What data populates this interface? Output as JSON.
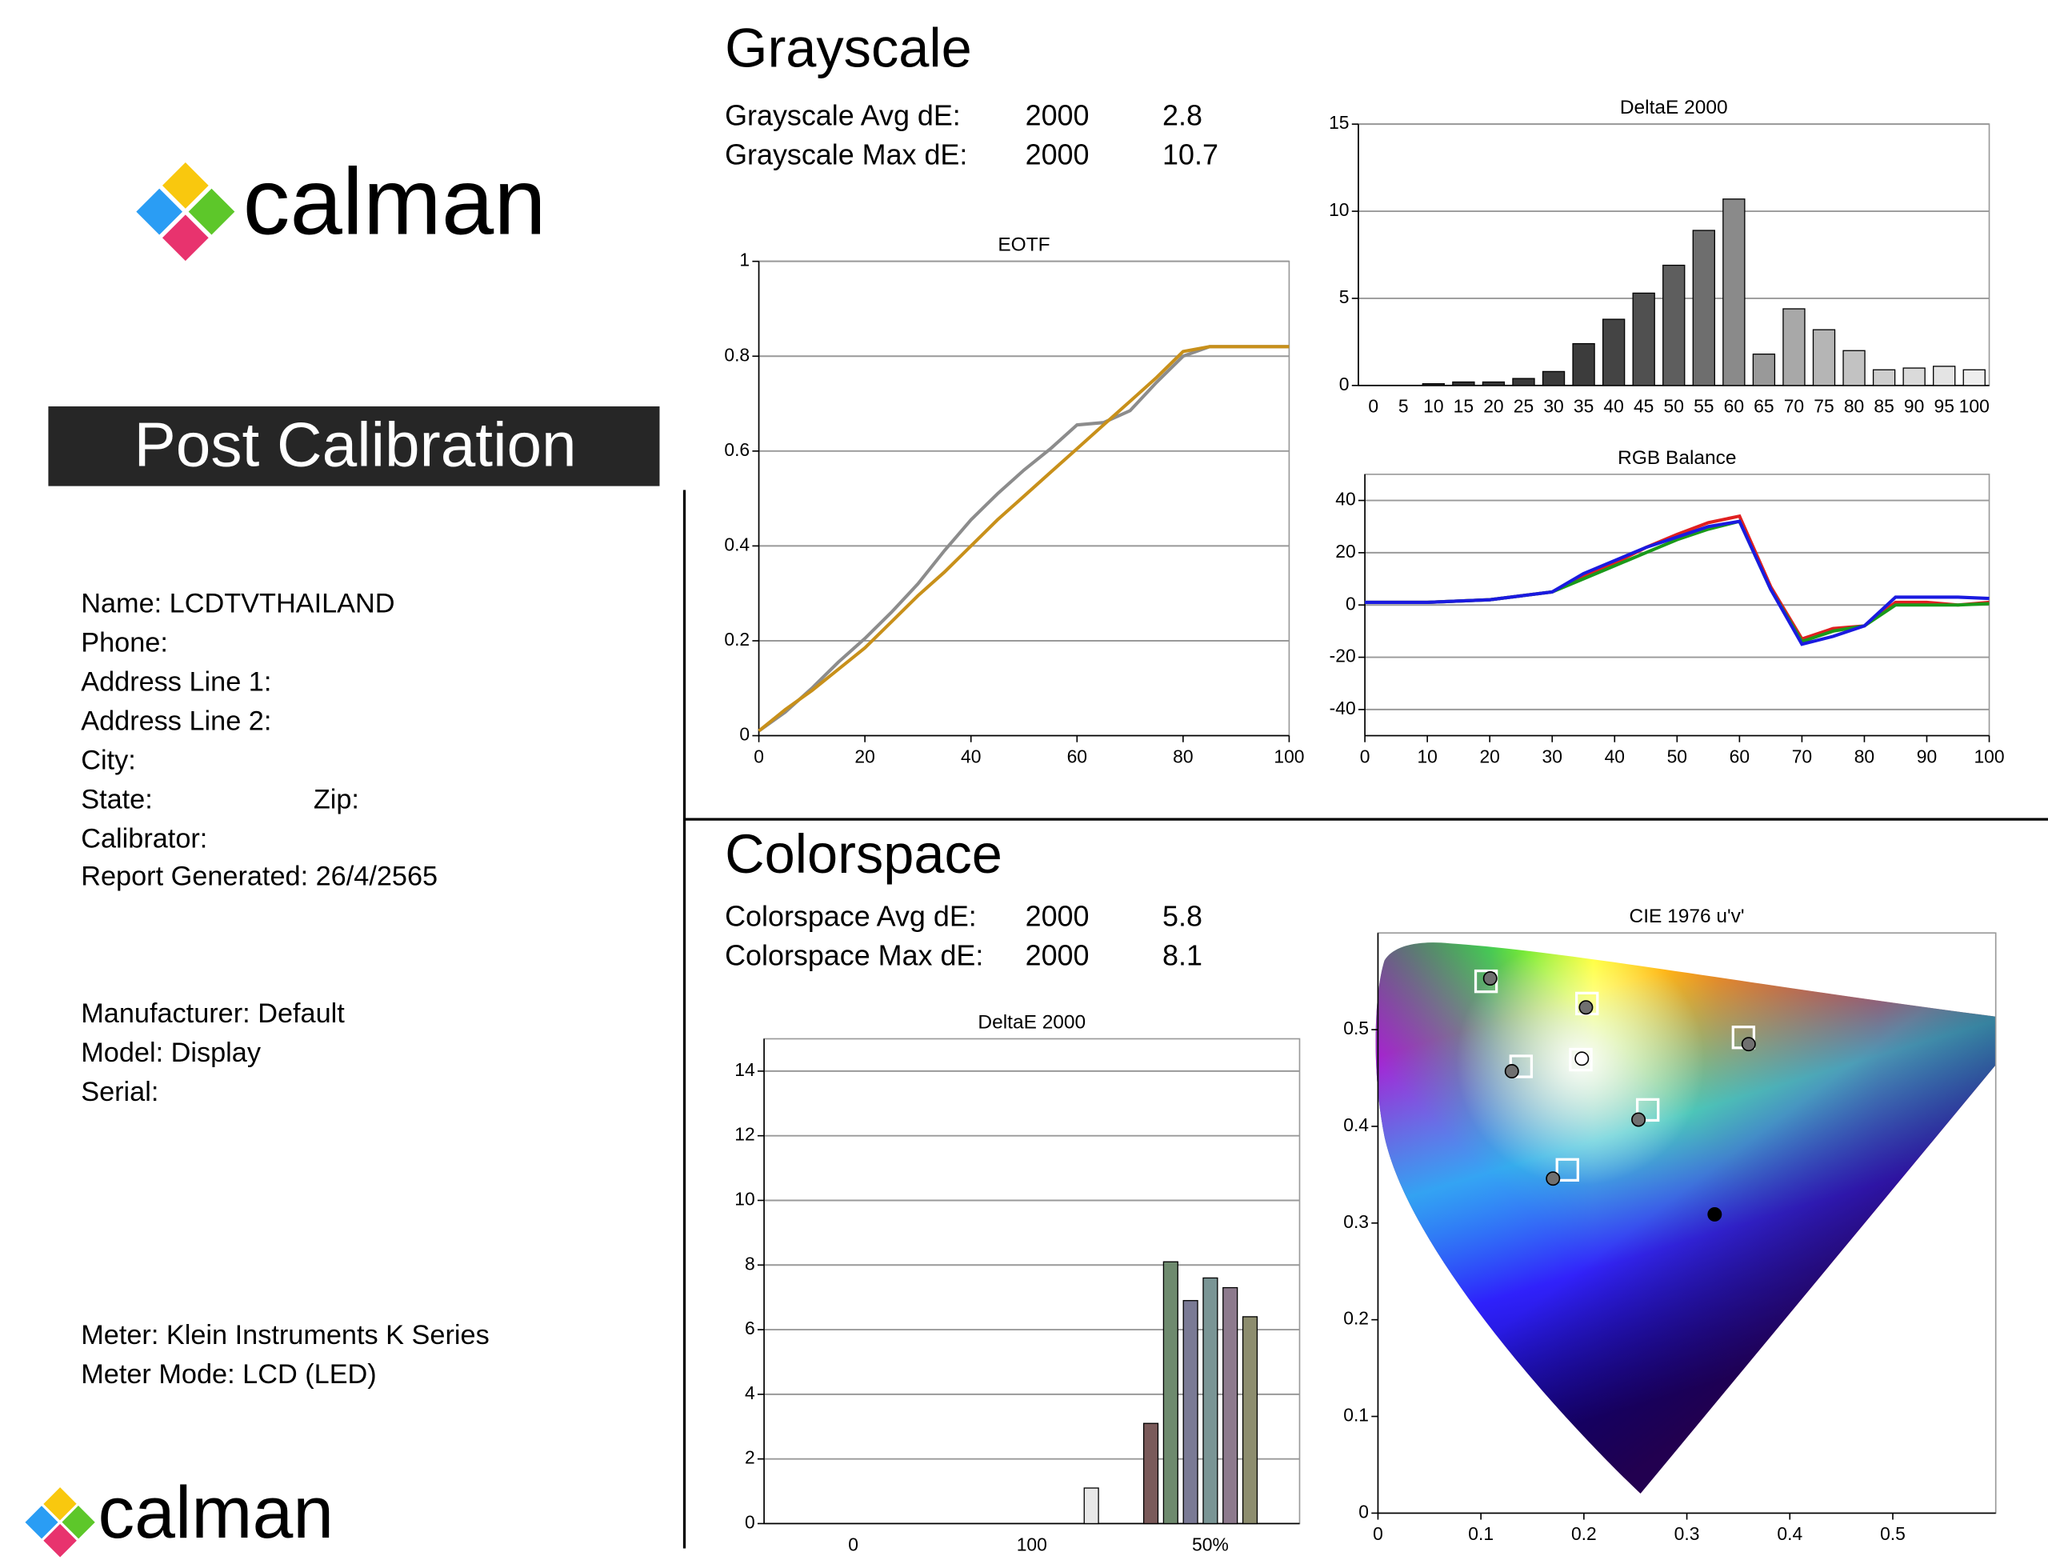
{
  "header": {
    "logo": "calman",
    "badge": "Post Calibration",
    "footer_logo": "calman"
  },
  "info": {
    "lines": [
      "Name: LCDTVTHAILAND",
      "Phone:",
      "Address Line 1:",
      "Address Line 2:",
      "City:",
      "State:",
      "Calibrator:",
      "Report Generated: 26/4/2565",
      "Manufacturer: Default",
      "Model: Display",
      "Serial:",
      "Meter: Klein Instruments K Series",
      "Meter Mode: LCD (LED)"
    ],
    "zip": "Zip:"
  },
  "grayscale": {
    "title": "Grayscale",
    "rows": [
      [
        "Grayscale Avg dE:",
        "2000",
        2.8
      ],
      [
        "Grayscale Max dE:",
        "2000",
        10.7
      ]
    ]
  },
  "colorspace": {
    "title": "Colorspace",
    "rows": [
      [
        "Colorspace Avg dE:",
        "2000",
        5.8
      ],
      [
        "Colorspace Max dE:",
        "2000",
        8.1
      ]
    ]
  },
  "chart_data": [
    {
      "type": "line",
      "title": "EOTF",
      "x": [
        0,
        5,
        10,
        15,
        20,
        25,
        30,
        35,
        40,
        45,
        50,
        55,
        60,
        65,
        70,
        75,
        80,
        85,
        90,
        95,
        100
      ],
      "series": [
        {
          "color": "#8c8c8c",
          "values": [
            0.01,
            0.05,
            0.1,
            0.155,
            0.205,
            0.26,
            0.32,
            0.39,
            0.455,
            0.51,
            0.56,
            0.605,
            0.655,
            0.66,
            0.685,
            0.745,
            0.8,
            0.82,
            0.82,
            0.82,
            0.82
          ]
        },
        {
          "color": "#c8901a",
          "values": [
            0.01,
            0.055,
            0.095,
            0.14,
            0.185,
            0.24,
            0.295,
            0.345,
            0.4,
            0.455,
            0.505,
            0.555,
            0.605,
            0.655,
            0.705,
            0.755,
            0.81,
            0.82,
            0.82,
            0.82,
            0.82
          ]
        }
      ],
      "xlim": [
        0,
        100
      ],
      "ylim": [
        0,
        1
      ],
      "xticks": [
        0,
        20,
        40,
        60,
        80,
        100
      ],
      "yticks": [
        0,
        0.2,
        0.4,
        0.6,
        0.8,
        1
      ],
      "grid": true
    },
    {
      "type": "bar",
      "title": "DeltaE 2000",
      "categories": [
        0,
        5,
        10,
        15,
        20,
        25,
        30,
        35,
        40,
        45,
        50,
        55,
        60,
        65,
        70,
        75,
        80,
        85,
        90,
        95,
        100
      ],
      "values": [
        0,
        0,
        0.1,
        0.2,
        0.2,
        0.4,
        0.8,
        2.4,
        3.8,
        5.3,
        6.9,
        8.9,
        10.7,
        1.8,
        4.4,
        3.2,
        2.0,
        0.9,
        1.0,
        1.1,
        0.9
      ],
      "colors": [
        "#2a2a2a",
        "#2e2e2e",
        "#303030",
        "#333333",
        "#363636",
        "#383838",
        "#3a3a3a",
        "#3c3c3c",
        "#444444",
        "#505050",
        "#5e5e5e",
        "#6e6e6e",
        "#8a8a8a",
        "#999999",
        "#a8a8a8",
        "#b5b5b5",
        "#c2c2c2",
        "#cecece",
        "#dadada",
        "#e4e4e4",
        "#eeeeee"
      ],
      "ylim": [
        0,
        15
      ],
      "yticks": [
        0,
        5,
        10,
        15
      ],
      "grid": true
    },
    {
      "type": "line",
      "title": "RGB Balance",
      "x": [
        0,
        5,
        10,
        15,
        20,
        25,
        30,
        35,
        40,
        45,
        50,
        55,
        60,
        65,
        70,
        75,
        80,
        85,
        90,
        95,
        100
      ],
      "series": [
        {
          "color": "#e02020",
          "values": [
            1,
            1,
            1,
            1.5,
            2,
            3.5,
            5,
            11,
            16,
            22,
            27,
            31.5,
            34,
            7,
            -13,
            -9,
            -8,
            1,
            1,
            0,
            1
          ]
        },
        {
          "color": "#1a9a1a",
          "values": [
            1,
            1,
            1,
            1.5,
            2,
            3.5,
            5,
            10,
            15,
            20,
            25,
            29,
            32,
            6,
            -14,
            -10,
            -8,
            0,
            0,
            0,
            0.5
          ]
        },
        {
          "color": "#1a1ae0",
          "values": [
            1,
            1,
            1,
            1.5,
            2,
            3.5,
            5,
            12,
            17,
            22,
            26,
            30,
            32,
            6,
            -15,
            -12,
            -8,
            3,
            3,
            3,
            2.5
          ]
        }
      ],
      "xlim": [
        0,
        100
      ],
      "ylim": [
        -50,
        50
      ],
      "xticks": [
        0,
        10,
        20,
        30,
        40,
        50,
        60,
        70,
        80,
        90,
        100
      ],
      "yticks": [
        -40,
        -20,
        0,
        20,
        40
      ],
      "grid": true
    },
    {
      "type": "bar",
      "title": "DeltaE 2000",
      "categories": [
        null,
        null,
        null,
        null,
        "0",
        null,
        null,
        null,
        null,
        null,
        null,
        null,
        null,
        "100",
        null,
        null,
        null,
        null,
        null,
        null,
        null,
        null,
        "50%",
        null,
        null,
        null,
        null
      ],
      "values": [
        null,
        null,
        null,
        null,
        null,
        null,
        null,
        null,
        null,
        null,
        null,
        null,
        null,
        null,
        null,
        null,
        1.1,
        null,
        null,
        3.1,
        8.1,
        6.9,
        7.6,
        7.3,
        6.4,
        null,
        null
      ],
      "colors": [
        null,
        null,
        null,
        null,
        null,
        null,
        null,
        null,
        null,
        null,
        null,
        null,
        null,
        null,
        null,
        null,
        "#e8e8e8",
        null,
        null,
        "#7a5a5a",
        "#6e8a6e",
        "#7a7a95",
        "#7a9595",
        "#8d7a8d",
        "#8d8d6e",
        null,
        null
      ],
      "ylim": [
        0,
        15
      ],
      "yticks": [
        0,
        2,
        4,
        6,
        8,
        10,
        12,
        14
      ],
      "grid": true
    },
    {
      "type": "scatter",
      "title": "CIE 1976 u'v'",
      "series": [
        {
          "marker": "square",
          "color": "#ffffff",
          "x": [
            0.105,
            0.203,
            0.355,
            0.139,
            0.262,
            0.184,
            0.197
          ],
          "y": [
            0.55,
            0.527,
            0.492,
            0.462,
            0.417,
            0.355,
            0.469
          ]
        },
        {
          "marker": "circle",
          "colors": [
            "#707070",
            "#707070",
            "#707070",
            "#707070",
            "#707070",
            "#707070",
            "#ffffff",
            "#000000"
          ],
          "x": [
            0.109,
            0.202,
            0.36,
            0.13,
            0.253,
            0.17,
            0.198,
            0.327
          ],
          "y": [
            0.553,
            0.523,
            0.485,
            0.457,
            0.407,
            0.346,
            0.47,
            0.309
          ]
        }
      ],
      "xlim": [
        0,
        0.6
      ],
      "ylim": [
        0,
        0.6
      ],
      "xticks": [
        0,
        0.1,
        0.2,
        0.3,
        0.4,
        0.5
      ],
      "yticks": [
        0,
        0.1,
        0.2,
        0.3,
        0.4,
        0.5
      ],
      "grid": false
    }
  ]
}
